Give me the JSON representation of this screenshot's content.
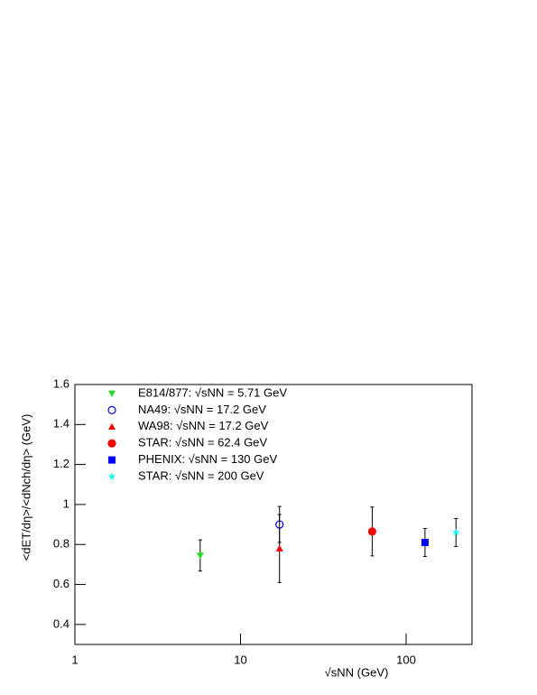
{
  "chart_data": {
    "type": "scatter",
    "x_label": "√sNN (GeV)",
    "y_label": "<dET/dη>/<dNch/dη> (GeV)",
    "xlim": [
      1,
      250
    ],
    "xticks": [
      1,
      10,
      100
    ],
    "log_x": true,
    "ylim": [
      0.3,
      1.6
    ],
    "yticks": [
      0.4,
      0.6,
      0.8,
      1,
      1.2,
      1.4,
      1.6
    ],
    "legend": "top-left",
    "series": [
      {
        "name": "E814/877: √sNN = 5.71 GeV",
        "color": "#22dd22",
        "marker": "triangle-down",
        "x": [
          5.71
        ],
        "values": [
          0.745
        ],
        "errors": [
          0.078
        ]
      },
      {
        "name": "NA49: √sNN = 17.2 GeV",
        "color": "#0000ff",
        "marker": "open-circle",
        "x": [
          17.2
        ],
        "values": [
          0.9
        ],
        "errors": [
          0.09
        ]
      },
      {
        "name": "WA98: √sNN = 17.2 GeV",
        "color": "#ff0000",
        "marker": "triangle-up",
        "x": [
          17.2
        ],
        "values": [
          0.78
        ],
        "errors": [
          0.17
        ]
      },
      {
        "name": "STAR: √sNN = 62.4 GeV",
        "color": "#ff0000",
        "marker": "circle",
        "x": [
          62.4
        ],
        "values": [
          0.865
        ],
        "errors": [
          0.122
        ]
      },
      {
        "name": "PHENIX: √sNN = 130 GeV",
        "color": "#0000ff",
        "marker": "square",
        "x": [
          130
        ],
        "values": [
          0.81
        ],
        "errors": [
          0.07
        ]
      },
      {
        "name": "STAR: √sNN = 200 GeV",
        "color": "#00ffff",
        "marker": "star",
        "x": [
          200
        ],
        "values": [
          0.86
        ],
        "errors": [
          0.07
        ]
      }
    ]
  }
}
